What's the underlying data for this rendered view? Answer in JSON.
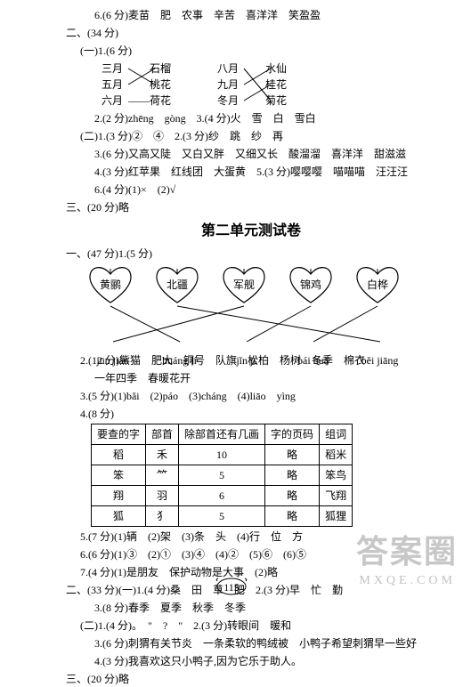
{
  "top_line": "6.(6 分)麦苗　肥　农事　辛苦　喜洋洋　笑盈盈",
  "sec2_header": "二、(34 分)",
  "sec2_1_header": "(一)1.(6 分)",
  "cross": {
    "left": [
      {
        "l": "三月",
        "r": "石榴"
      },
      {
        "l": "五月",
        "r": "桃花"
      },
      {
        "l": "六月",
        "r": "荷花"
      }
    ],
    "right": [
      {
        "l": "八月",
        "r": "水仙"
      },
      {
        "l": "九月",
        "r": "桂花"
      },
      {
        "l": "冬月",
        "r": "菊花"
      }
    ]
  },
  "sec2_2": "2.(2 分)zhēng　gòng　3.(4 分)火　雪　白　雪白",
  "sec2_b1": "(二)1.(3 分)②　④　2.(3 分)纱　跳　纱　再",
  "sec2_b3": "3.(6 分)又高又陡　又白又胖　又细又长　酸溜溜　喜洋洋　甜滋滋",
  "sec2_b4": "4.(3 分)红苹果　红线团　大蛋黄　5.(3 分)嘤嘤嘤　喵喵喵　汪汪汪",
  "sec2_b6": "6.(4 分)(1)×　(2)√",
  "sec3": "三、(20 分)略",
  "unit_title": "第二单元测试卷",
  "u_sec1": "一、(47 分)1.(5 分)",
  "hearts": [
    "黄鹂",
    "北疆",
    "军舰",
    "锦鸡",
    "白桦"
  ],
  "pinyin": [
    "jūn jiàn",
    "huáng lí",
    "jǐn jī",
    "bái huà",
    "běi jiāng"
  ],
  "heart_map": [
    1,
    4,
    0,
    2,
    3
  ],
  "u2": "2.(12 分)熊猫　肥大　铜号　队旗　松柏　杨树　冬季　棉衣",
  "u2b": "一年四季　春暖花开",
  "u3": "3.(5 分)(1)bǎi　(2)páo　(3)cháng　(4)liāo　yìng",
  "u4": "4.(8 分)",
  "table": {
    "headers": [
      "要查的字",
      "部首",
      "除部首还有几画",
      "字的页码",
      "组词"
    ],
    "rows": [
      [
        "稻",
        "禾",
        "10",
        "略",
        "稻米"
      ],
      [
        "笨",
        "⺮",
        "5",
        "略",
        "笨鸟"
      ],
      [
        "翔",
        "羽",
        "6",
        "略",
        "飞翔"
      ],
      [
        "狐",
        "犭",
        "5",
        "略",
        "狐狸"
      ]
    ]
  },
  "u5": "5.(7 分)(1)辆　(2)架　(3)条　头　(4)行　位　方",
  "u6": "6.(6 分)(1)③　(2)①　(3)④　(4)②　(5)⑥　(6)⑤",
  "u7": "7.(4 分)(1)是朋友　保护动物是大事　(2)略",
  "s2": "二、(33 分)(一)1.(4 分)桑　田　草　肥　2.(3 分)早　忙　勤",
  "s2_3": "3.(8 分)春季　夏季　秋季　冬季",
  "s2b": "(二)1.(4 分)。　\"　?　\"　2.(3 分)转眼间　暖和",
  "s2b3": "3.(6 分)刺猬有关节炎　一条柔软的鸭绒被　小鸭子希望刺猬早一些好",
  "s2b4": "4.(3 分)我喜欢这只小鸭子,因为它乐于助人。",
  "s3b": "三、(20 分)略",
  "page": "115",
  "watermark": "答案圈",
  "watermark_sub": "MXQE.COM"
}
